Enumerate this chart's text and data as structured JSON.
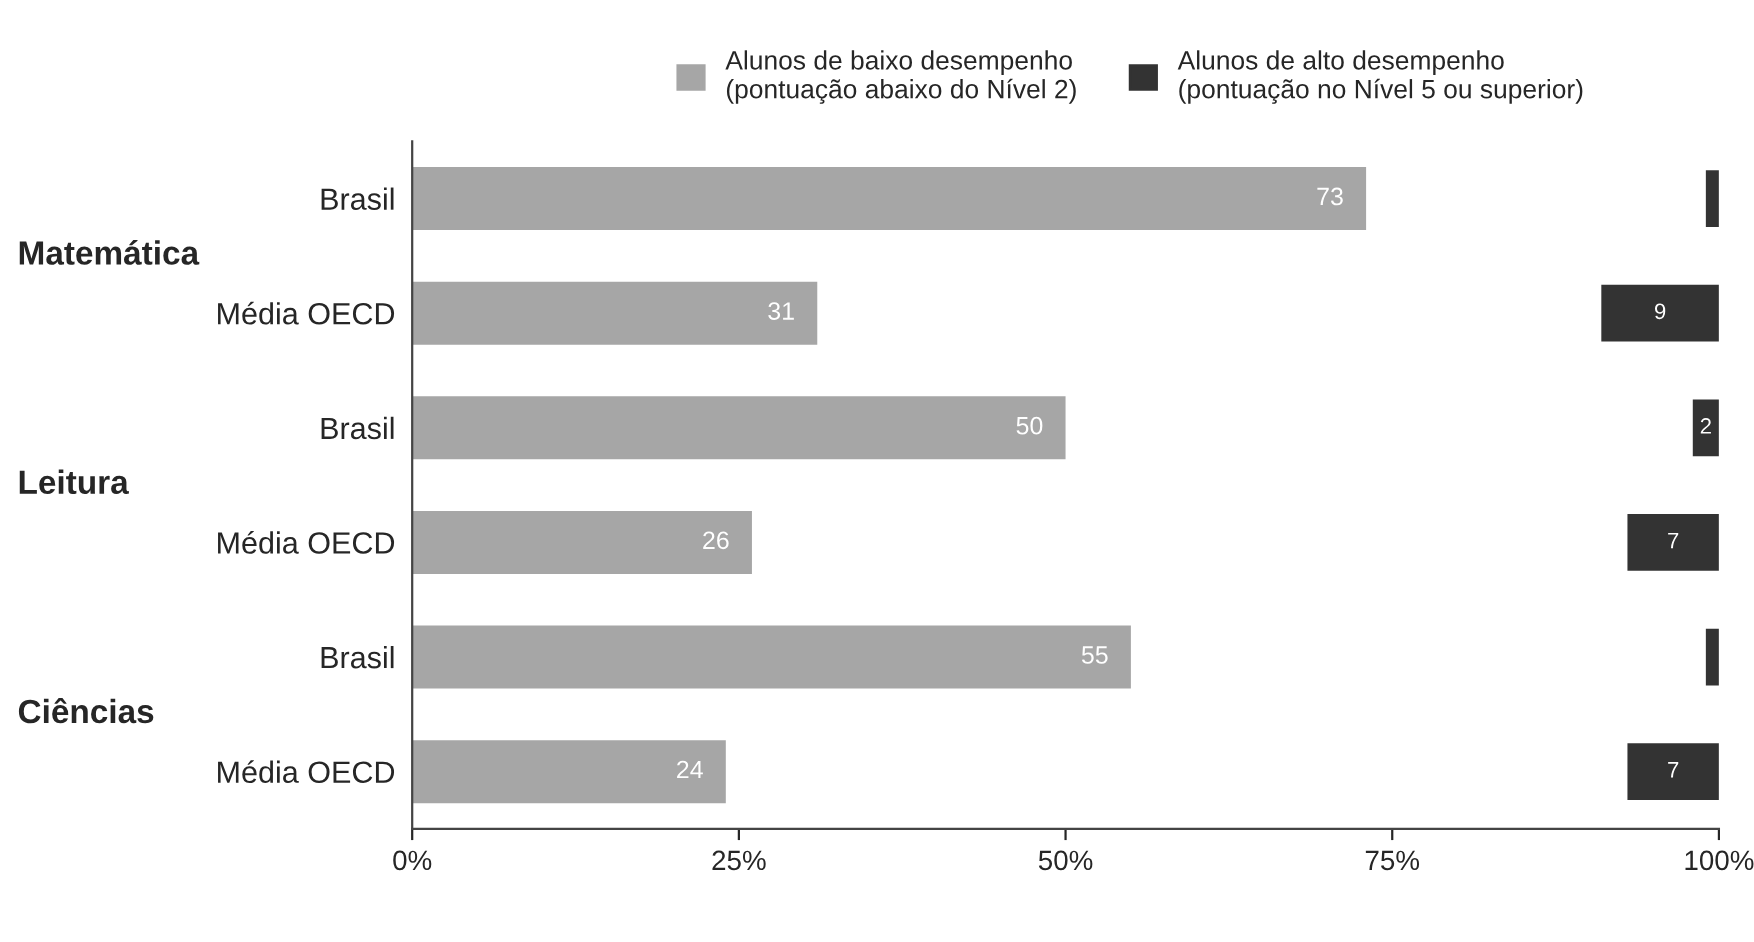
{
  "chart_data": {
    "type": "bar",
    "orientation": "horizontal",
    "legend": "top",
    "categories": [
      "Brasil",
      "Média OECD",
      "Brasil",
      "Média OECD",
      "Brasil",
      "Média OECD"
    ],
    "series": [
      {
        "name": "Alunos de baixo desempenho\n(pontuação abaixo do Nível 2)",
        "color": "#a6a6a6",
        "values": [
          73,
          31,
          50,
          26,
          55,
          24
        ],
        "value_labels": [
          "73",
          "31",
          "50",
          "26",
          "55",
          "24"
        ]
      },
      {
        "name": "Alunos de alto desempenho\n(pontuação no Nível 5 ou superior)",
        "color": "#333333",
        "values": [
          1,
          9,
          2,
          7,
          1,
          7
        ],
        "base": [
          99,
          91,
          98,
          93,
          99,
          93
        ],
        "value_labels": [
          null,
          "9",
          "2",
          "7",
          null,
          "7"
        ]
      }
    ],
    "xlim": [
      0,
      100
    ],
    "xticks": [
      {
        "value": 0,
        "label": "0%"
      },
      {
        "value": 25,
        "label": "25%"
      },
      {
        "value": 50,
        "label": "50%"
      },
      {
        "value": 75,
        "label": "75%"
      },
      {
        "value": 100,
        "label": "100%"
      }
    ],
    "grid": false,
    "annotations": [
      "Matemática",
      "Leitura",
      "Ciências"
    ]
  }
}
